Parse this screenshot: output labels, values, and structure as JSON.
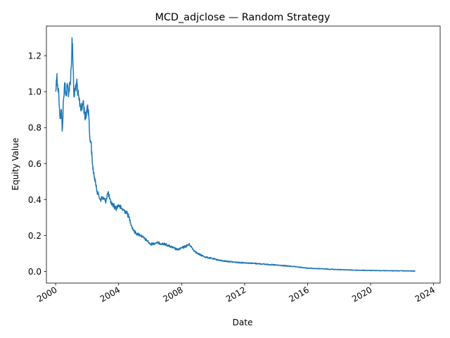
{
  "chart_data": {
    "type": "line",
    "title": "MCD_adjclose — Random Strategy",
    "xlabel": "Date",
    "ylabel": "Equity Value",
    "xlim": [
      "1999-06-01",
      "2024-06-01"
    ],
    "ylim": [
      -0.065,
      1.365
    ],
    "grid": false,
    "x_ticks": [
      {
        "date": "2000-01-01",
        "label": "2000"
      },
      {
        "date": "2004-01-01",
        "label": "2004"
      },
      {
        "date": "2008-01-01",
        "label": "2008"
      },
      {
        "date": "2012-01-01",
        "label": "2012"
      },
      {
        "date": "2016-01-01",
        "label": "2016"
      },
      {
        "date": "2020-01-01",
        "label": "2020"
      },
      {
        "date": "2024-01-01",
        "label": "2024"
      }
    ],
    "y_ticks": [
      {
        "value": 0.0,
        "label": "0.0"
      },
      {
        "value": 0.2,
        "label": "0.2"
      },
      {
        "value": 0.4,
        "label": "0.4"
      },
      {
        "value": 0.6,
        "label": "0.6"
      },
      {
        "value": 0.8,
        "label": "0.8"
      },
      {
        "value": 1.0,
        "label": "1.0"
      },
      {
        "value": 1.2,
        "label": "1.2"
      }
    ],
    "series": [
      {
        "color": "#1f77b4",
        "x": [
          "2000-01-03",
          "2000-02-01",
          "2000-02-15",
          "2000-03-15",
          "2000-04-15",
          "2000-05-15",
          "2000-06-01",
          "2000-07-01",
          "2000-08-01",
          "2000-09-01",
          "2000-10-01",
          "2000-11-01",
          "2000-12-01",
          "2001-01-01",
          "2001-01-15",
          "2001-02-01",
          "2001-03-01",
          "2001-04-01",
          "2001-05-01",
          "2001-06-01",
          "2001-07-01",
          "2001-08-01",
          "2001-09-01",
          "2001-10-01",
          "2001-11-01",
          "2001-12-01",
          "2002-01-01",
          "2002-02-01",
          "2002-03-01",
          "2002-04-01",
          "2002-05-01",
          "2002-06-01",
          "2002-07-01",
          "2002-08-01",
          "2002-09-01",
          "2002-10-01",
          "2002-11-01",
          "2003-01-01",
          "2003-03-01",
          "2003-05-01",
          "2003-07-01",
          "2003-09-01",
          "2003-11-01",
          "2004-01-01",
          "2004-03-01",
          "2004-05-01",
          "2004-07-01",
          "2004-09-01",
          "2004-11-01",
          "2005-01-01",
          "2005-03-01",
          "2005-06-01",
          "2005-09-01",
          "2005-11-01",
          "2006-01-01",
          "2006-06-01",
          "2007-01-01",
          "2007-04-01",
          "2007-07-01",
          "2007-10-01",
          "2008-01-01",
          "2008-04-01",
          "2008-07-01",
          "2008-10-01",
          "2009-01-01",
          "2009-04-01",
          "2009-07-01",
          "2010-01-01",
          "2010-07-01",
          "2011-01-01",
          "2011-07-01",
          "2012-01-01",
          "2013-01-01",
          "2014-01-01",
          "2015-01-01",
          "2016-01-01",
          "2017-01-01",
          "2018-01-01",
          "2019-01-01",
          "2020-01-01",
          "2021-01-01",
          "2022-01-01",
          "2022-11-01"
        ],
        "values": [
          1.0,
          1.1,
          1.04,
          0.98,
          0.85,
          0.9,
          0.78,
          0.95,
          1.05,
          0.98,
          1.03,
          1.0,
          1.05,
          1.15,
          1.3,
          1.2,
          0.97,
          1.02,
          1.05,
          0.98,
          0.95,
          0.92,
          0.9,
          0.95,
          0.88,
          0.85,
          0.92,
          0.9,
          0.75,
          0.72,
          0.6,
          0.55,
          0.5,
          0.48,
          0.43,
          0.42,
          0.4,
          0.41,
          0.39,
          0.44,
          0.38,
          0.37,
          0.35,
          0.37,
          0.35,
          0.34,
          0.33,
          0.3,
          0.25,
          0.22,
          0.21,
          0.2,
          0.18,
          0.17,
          0.15,
          0.16,
          0.15,
          0.14,
          0.13,
          0.12,
          0.13,
          0.14,
          0.15,
          0.12,
          0.1,
          0.09,
          0.08,
          0.07,
          0.06,
          0.055,
          0.05,
          0.048,
          0.042,
          0.035,
          0.028,
          0.018,
          0.014,
          0.01,
          0.007,
          0.005,
          0.004,
          0.003,
          0.002
        ]
      }
    ]
  }
}
